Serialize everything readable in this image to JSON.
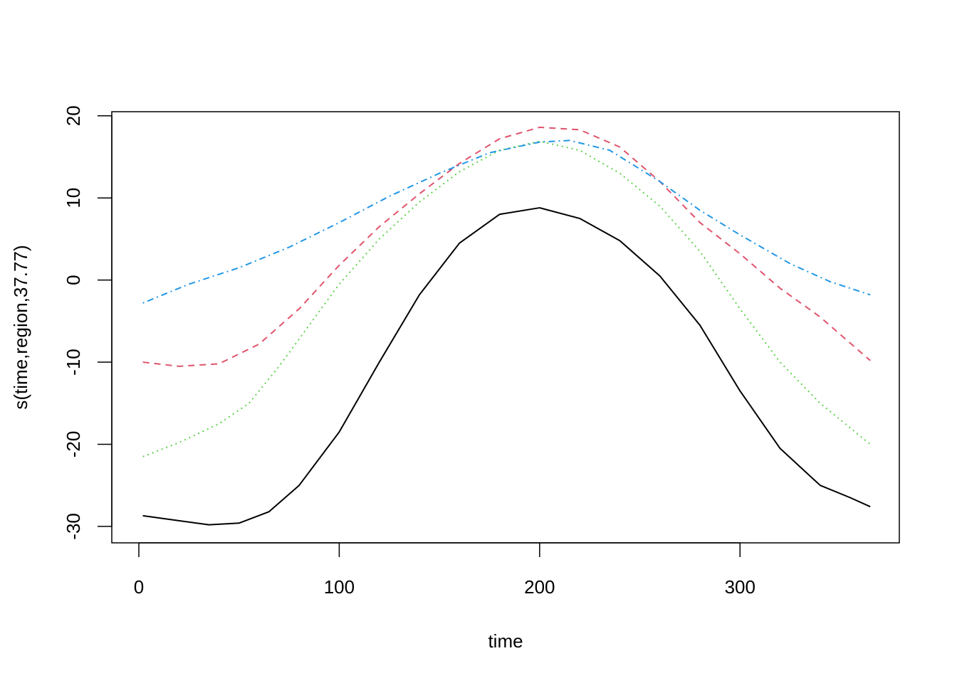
{
  "chart_data": {
    "type": "line",
    "title": "",
    "xlabel": "time",
    "ylabel": "s(time,region,37.77)",
    "xlim": [
      -13.5,
      379.5
    ],
    "ylim": [
      -32,
      20.5
    ],
    "x_ticks": [
      0,
      100,
      200,
      300
    ],
    "x_tick_labels": [
      "0",
      "100",
      "200",
      "300"
    ],
    "y_ticks": [
      -30,
      -20,
      -10,
      0,
      10,
      20
    ],
    "y_tick_labels": [
      "-30",
      "-20",
      "-10",
      "0",
      "10",
      "20"
    ],
    "grid": false,
    "legend": "none",
    "series": [
      {
        "color": "#000000",
        "dash": "solid",
        "x": [
          2,
          20,
          35,
          50,
          65,
          80,
          100,
          120,
          140,
          160,
          180,
          200,
          220,
          240,
          260,
          280,
          300,
          320,
          340,
          355,
          365
        ],
        "y": [
          -28.7,
          -29.3,
          -29.8,
          -29.6,
          -28.2,
          -25.0,
          -18.5,
          -10.0,
          -1.8,
          4.5,
          8.0,
          8.8,
          7.5,
          4.8,
          0.5,
          -5.5,
          -13.5,
          -20.5,
          -25.0,
          -26.5,
          -27.6
        ]
      },
      {
        "color": "#DF536B",
        "dash": "dashed",
        "x": [
          2,
          20,
          40,
          60,
          80,
          100,
          120,
          140,
          160,
          180,
          200,
          220,
          240,
          260,
          280,
          300,
          320,
          340,
          365
        ],
        "y": [
          -10.0,
          -10.5,
          -10.2,
          -7.8,
          -3.5,
          1.8,
          6.5,
          10.5,
          14.2,
          17.2,
          18.6,
          18.3,
          16.2,
          12.0,
          7.0,
          3.2,
          -1.0,
          -4.5,
          -9.8
        ]
      },
      {
        "color": "#61D04F",
        "dash": "dotted",
        "x": [
          2,
          20,
          40,
          55,
          70,
          85,
          100,
          120,
          140,
          160,
          180,
          200,
          220,
          240,
          260,
          280,
          300,
          320,
          340,
          365
        ],
        "y": [
          -21.5,
          -19.8,
          -17.5,
          -15.0,
          -10.5,
          -5.5,
          -0.5,
          5.0,
          9.5,
          13.2,
          15.8,
          16.9,
          15.8,
          13.0,
          9.0,
          3.5,
          -3.5,
          -10.0,
          -15.0,
          -20.0
        ]
      },
      {
        "color": "#2297E6",
        "dash": "dotdash",
        "x": [
          2,
          25,
          50,
          75,
          100,
          125,
          150,
          175,
          200,
          215,
          235,
          260,
          280,
          300,
          325,
          345,
          365
        ],
        "y": [
          -2.8,
          -0.5,
          1.5,
          4.0,
          7.0,
          10.2,
          13.0,
          15.5,
          16.8,
          17.0,
          15.8,
          12.0,
          8.5,
          5.5,
          2.0,
          -0.2,
          -1.8
        ]
      }
    ]
  }
}
